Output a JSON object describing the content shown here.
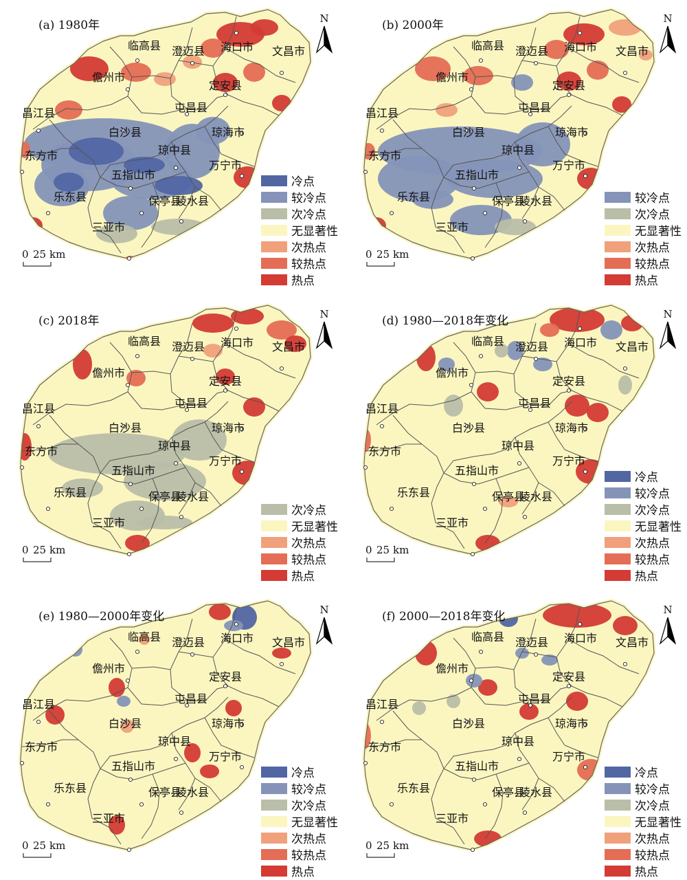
{
  "colors": {
    "cold": "#5166a3",
    "cool": "#8593b8",
    "subcool": "#b9bea8",
    "none": "#fbf6c0",
    "subhot": "#f0a17c",
    "warm": "#e46d55",
    "hot": "#d33b34",
    "boundary": "#555555"
  },
  "icons": {
    "north_arrow": "north-arrow-icon",
    "county_seat": "county-seat-dot-icon"
  },
  "north_label": "N",
  "scalebar": {
    "zero": "0",
    "value": "25",
    "unit": "km"
  },
  "place_names": [
    "临高县",
    "澄迈县",
    "海口市",
    "文昌市",
    "儋州市",
    "定安县",
    "屯昌县",
    "昌江县",
    "白沙县",
    "琼海市",
    "东方市",
    "琼中县",
    "五指山市",
    "万宁市",
    "乐东县",
    "保亭县",
    "陵水县",
    "三亚市"
  ],
  "panels": [
    {
      "title": "(a) 1980年",
      "legend": [
        {
          "key": "cold",
          "label": "冷点"
        },
        {
          "key": "cool",
          "label": "较冷点"
        },
        {
          "key": "subcool",
          "label": "次冷点"
        },
        {
          "key": "none",
          "label": "无显著性"
        },
        {
          "key": "subhot",
          "label": "次热点"
        },
        {
          "key": "warm",
          "label": "较热点"
        },
        {
          "key": "hot",
          "label": "热点"
        }
      ]
    },
    {
      "title": "(b) 2000年",
      "legend": [
        {
          "key": "cool",
          "label": "较冷点"
        },
        {
          "key": "subcool",
          "label": "次冷点"
        },
        {
          "key": "none",
          "label": "无显著性"
        },
        {
          "key": "subhot",
          "label": "次热点"
        },
        {
          "key": "warm",
          "label": "较热点"
        },
        {
          "key": "hot",
          "label": "热点"
        }
      ]
    },
    {
      "title": "(c) 2018年",
      "legend": [
        {
          "key": "subcool",
          "label": "次冷点"
        },
        {
          "key": "none",
          "label": "无显著性"
        },
        {
          "key": "subhot",
          "label": "次热点"
        },
        {
          "key": "warm",
          "label": "较热点"
        },
        {
          "key": "hot",
          "label": "热点"
        }
      ]
    },
    {
      "title": "(d) 1980—2018年变化",
      "legend": [
        {
          "key": "cold",
          "label": "冷点"
        },
        {
          "key": "cool",
          "label": "较冷点"
        },
        {
          "key": "subcool",
          "label": "次冷点"
        },
        {
          "key": "none",
          "label": "无显著性"
        },
        {
          "key": "subhot",
          "label": "次热点"
        },
        {
          "key": "warm",
          "label": "较热点"
        },
        {
          "key": "hot",
          "label": "热点"
        }
      ]
    },
    {
      "title": "(e) 1980—2000年变化",
      "legend": [
        {
          "key": "cold",
          "label": "冷点"
        },
        {
          "key": "cool",
          "label": "较冷点"
        },
        {
          "key": "subcool",
          "label": "次冷点"
        },
        {
          "key": "none",
          "label": "无显著性"
        },
        {
          "key": "subhot",
          "label": "次热点"
        },
        {
          "key": "warm",
          "label": "较热点"
        },
        {
          "key": "hot",
          "label": "热点"
        }
      ]
    },
    {
      "title": "(f) 2000—2018年变化",
      "legend": [
        {
          "key": "cold",
          "label": "冷点"
        },
        {
          "key": "cool",
          "label": "较冷点"
        },
        {
          "key": "subcool",
          "label": "次冷点"
        },
        {
          "key": "none",
          "label": "无显著性"
        },
        {
          "key": "subhot",
          "label": "次热点"
        },
        {
          "key": "warm",
          "label": "较热点"
        },
        {
          "key": "hot",
          "label": "热点"
        }
      ]
    }
  ]
}
